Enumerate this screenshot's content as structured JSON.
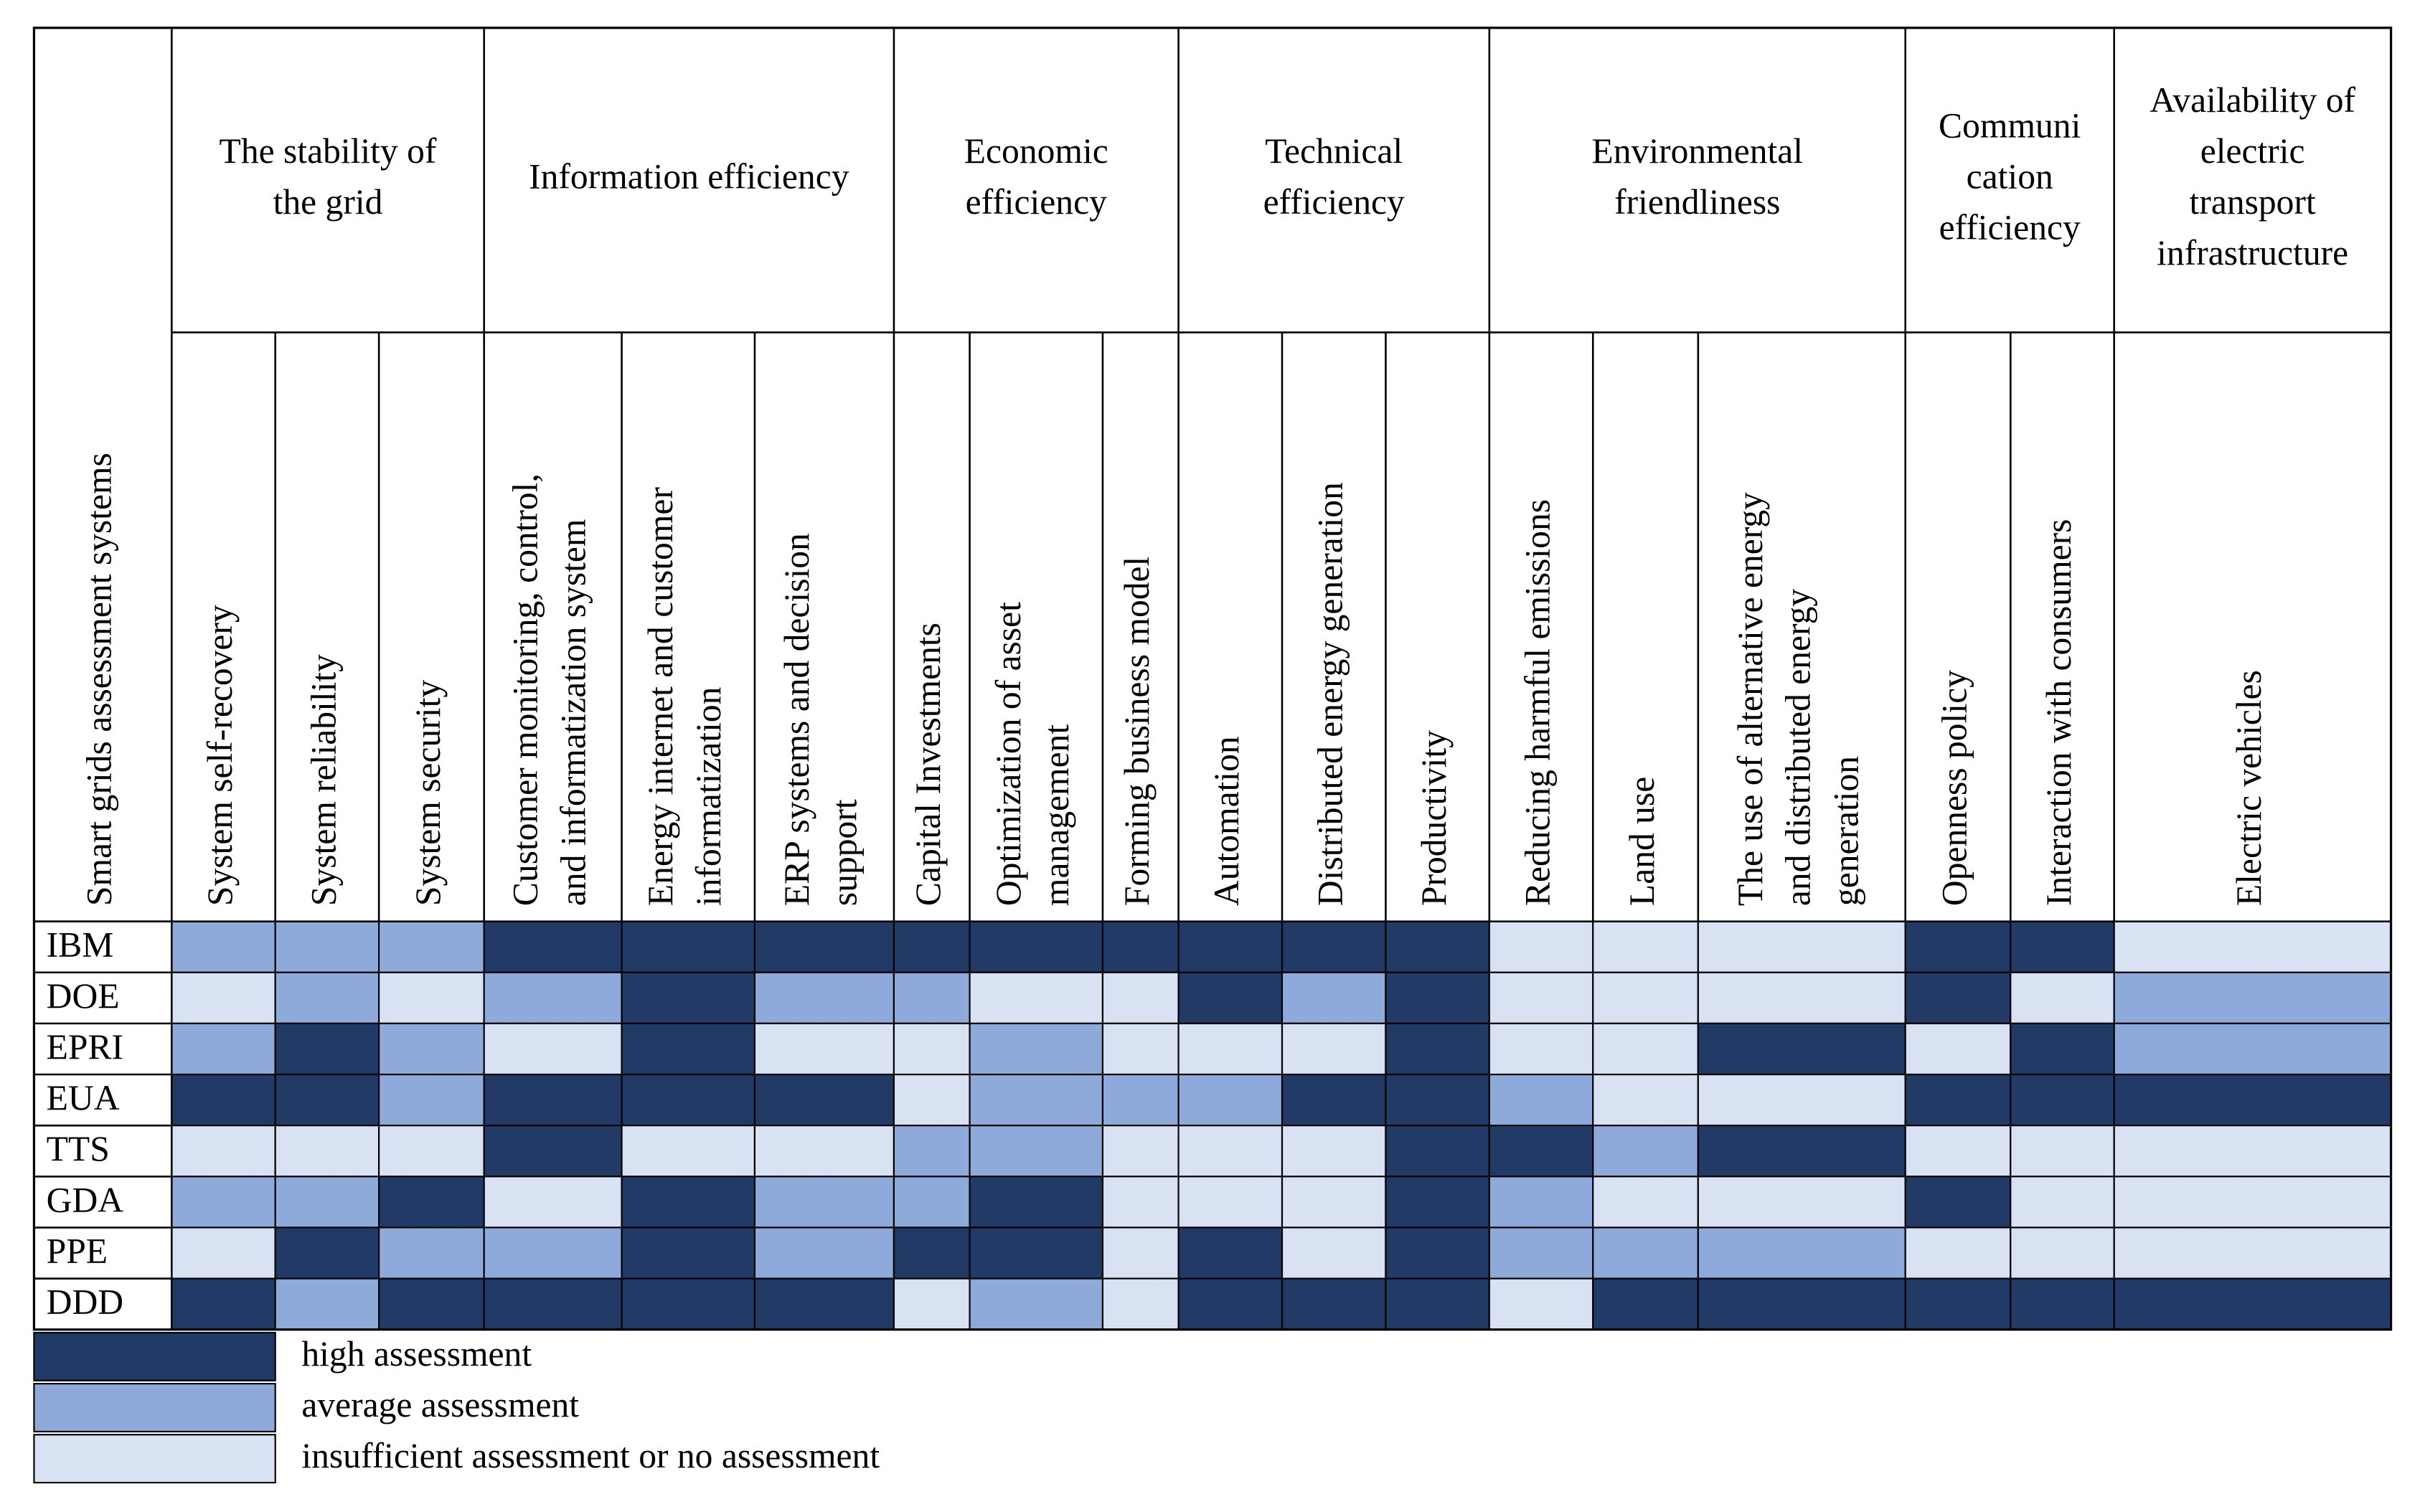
{
  "table": {
    "corner": "Smart grids assessment systems",
    "groups": [
      {
        "lines": [
          "The stability of",
          "the grid"
        ],
        "span": 3
      },
      {
        "lines": [
          "Information efficiency"
        ],
        "span": 3
      },
      {
        "lines": [
          "Economic",
          "efficiency"
        ],
        "span": 3
      },
      {
        "lines": [
          "Technical",
          "efficiency"
        ],
        "span": 3
      },
      {
        "lines": [
          "Environmental",
          "friendliness"
        ],
        "span": 3
      },
      {
        "lines": [
          "Communi",
          "cation",
          "efficiency"
        ],
        "span": 2
      },
      {
        "lines": [
          "Availability of",
          "electric",
          "transport",
          "infrastructure"
        ],
        "span": 1
      }
    ],
    "columns": [
      {
        "lines": [
          "System self-recovery"
        ]
      },
      {
        "lines": [
          "System reliability"
        ]
      },
      {
        "lines": [
          "System security"
        ]
      },
      {
        "lines": [
          "Customer monitoring, control,",
          "and informatization system"
        ]
      },
      {
        "lines": [
          "Energy internet and customer",
          "informatization"
        ]
      },
      {
        "lines": [
          "ERP systems and decision",
          "support"
        ]
      },
      {
        "lines": [
          "Capital Investments"
        ]
      },
      {
        "lines": [
          "Optimization of asset",
          "management"
        ]
      },
      {
        "lines": [
          "Forming business model"
        ]
      },
      {
        "lines": [
          "Automation"
        ]
      },
      {
        "lines": [
          "Distributed energy generation"
        ]
      },
      {
        "lines": [
          "Productivity"
        ]
      },
      {
        "lines": [
          "Reducing harmful emissions"
        ]
      },
      {
        "lines": [
          "Land use"
        ]
      },
      {
        "lines": [
          "The use of alternative energy",
          "and distributed energy",
          "generation"
        ]
      },
      {
        "lines": [
          "Openness policy"
        ]
      },
      {
        "lines": [
          "Interaction with consumers"
        ]
      },
      {
        "lines": [
          "Electric vehicles"
        ]
      }
    ],
    "rows": [
      {
        "label": "IBM",
        "cells": [
          1,
          1,
          1,
          0,
          0,
          0,
          0,
          0,
          0,
          0,
          0,
          0,
          2,
          2,
          2,
          0,
          0,
          2
        ]
      },
      {
        "label": "DOE",
        "cells": [
          2,
          1,
          2,
          1,
          0,
          1,
          1,
          2,
          2,
          0,
          1,
          0,
          2,
          2,
          2,
          0,
          2,
          1
        ]
      },
      {
        "label": "EPRI",
        "cells": [
          1,
          0,
          1,
          2,
          0,
          2,
          2,
          1,
          2,
          2,
          2,
          0,
          2,
          2,
          0,
          2,
          0,
          1
        ]
      },
      {
        "label": "EUA",
        "cells": [
          0,
          0,
          1,
          0,
          0,
          0,
          2,
          1,
          1,
          1,
          0,
          0,
          1,
          2,
          2,
          0,
          0,
          0
        ]
      },
      {
        "label": "TTS",
        "cells": [
          2,
          2,
          2,
          0,
          2,
          2,
          1,
          1,
          2,
          2,
          2,
          0,
          0,
          1,
          0,
          2,
          2,
          2
        ]
      },
      {
        "label": "GDA",
        "cells": [
          1,
          1,
          0,
          2,
          0,
          1,
          1,
          0,
          2,
          2,
          2,
          0,
          1,
          2,
          2,
          0,
          2,
          2
        ]
      },
      {
        "label": "PPE",
        "cells": [
          2,
          0,
          1,
          1,
          0,
          1,
          0,
          0,
          2,
          0,
          2,
          0,
          1,
          1,
          1,
          2,
          2,
          2
        ]
      },
      {
        "label": "DDD",
        "cells": [
          0,
          1,
          0,
          0,
          0,
          0,
          2,
          1,
          2,
          0,
          0,
          0,
          2,
          0,
          0,
          0,
          0,
          0
        ]
      }
    ],
    "legend": [
      {
        "label": "high assessment",
        "color": "#213a66"
      },
      {
        "label": "average assessment",
        "color": "#8eaadb"
      },
      {
        "label": "insufficient assessment or no assessment",
        "color": "#d9e2f3"
      }
    ]
  }
}
